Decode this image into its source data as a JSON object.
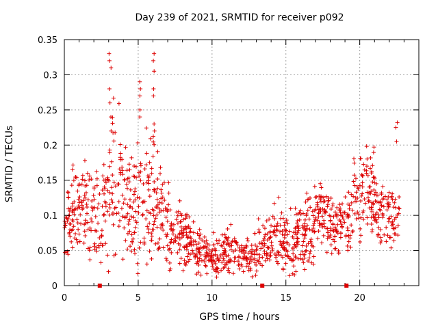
{
  "chart_data": {
    "type": "scatter",
    "title": "Day 239 of 2021, SRMTID for receiver p092",
    "xlabel": "GPS time / hours",
    "ylabel": "SRMTID / TECUs",
    "xlim": [
      0,
      24
    ],
    "ylim": [
      0,
      0.35
    ],
    "xticks": [
      0,
      5,
      10,
      15,
      20
    ],
    "yticks": [
      0,
      0.05,
      0.1,
      0.15,
      0.2,
      0.25,
      0.3,
      0.35
    ],
    "ytick_labels": [
      "0",
      "0.05",
      "0.1",
      "0.15",
      "0.2",
      "0.25",
      "0.3",
      "0.35"
    ],
    "grid": true,
    "marker": "+",
    "color": "#dd0000",
    "envelope": {
      "x": [
        0.0,
        0.5,
        1.0,
        1.5,
        2.0,
        2.5,
        3.0,
        3.5,
        4.0,
        4.5,
        5.0,
        5.5,
        6.0,
        6.5,
        7.0,
        7.5,
        8.0,
        8.5,
        9.0,
        9.5,
        10.0,
        10.5,
        11.0,
        11.5,
        12.0,
        12.5,
        13.0,
        13.5,
        14.0,
        14.5,
        15.0,
        15.5,
        16.0,
        16.5,
        17.0,
        17.5,
        18.0,
        18.5,
        19.0,
        19.5,
        20.0,
        20.5,
        21.0,
        21.5,
        22.0,
        22.5
      ],
      "center": [
        0.09,
        0.1,
        0.11,
        0.12,
        0.1,
        0.09,
        0.13,
        0.16,
        0.14,
        0.11,
        0.11,
        0.13,
        0.12,
        0.1,
        0.08,
        0.07,
        0.07,
        0.06,
        0.05,
        0.05,
        0.04,
        0.04,
        0.05,
        0.05,
        0.04,
        0.05,
        0.05,
        0.06,
        0.07,
        0.07,
        0.06,
        0.06,
        0.07,
        0.08,
        0.09,
        0.11,
        0.09,
        0.08,
        0.09,
        0.1,
        0.13,
        0.15,
        0.12,
        0.1,
        0.1,
        0.09
      ],
      "spread": [
        0.03,
        0.04,
        0.05,
        0.05,
        0.05,
        0.04,
        0.08,
        0.09,
        0.08,
        0.06,
        0.07,
        0.07,
        0.06,
        0.05,
        0.04,
        0.03,
        0.03,
        0.025,
        0.025,
        0.025,
        0.02,
        0.025,
        0.025,
        0.025,
        0.02,
        0.025,
        0.025,
        0.03,
        0.035,
        0.035,
        0.03,
        0.035,
        0.035,
        0.04,
        0.04,
        0.04,
        0.035,
        0.035,
        0.035,
        0.04,
        0.05,
        0.05,
        0.045,
        0.04,
        0.04,
        0.03
      ]
    },
    "peaks": [
      {
        "x": 3.1,
        "y": [
          0.32,
          0.33,
          0.31,
          0.28,
          0.26,
          0.24,
          0.22
        ]
      },
      {
        "x": 5.1,
        "y": [
          0.29,
          0.28,
          0.27,
          0.25,
          0.24
        ]
      },
      {
        "x": 6.1,
        "y": [
          0.33,
          0.32,
          0.305,
          0.28,
          0.27,
          0.23,
          0.22
        ]
      },
      {
        "x": 22.5,
        "y": [
          0.232,
          0.225,
          0.205
        ]
      }
    ],
    "gap_markers_x": [
      2.4,
      13.4,
      19.1
    ],
    "point_count": 1300
  }
}
